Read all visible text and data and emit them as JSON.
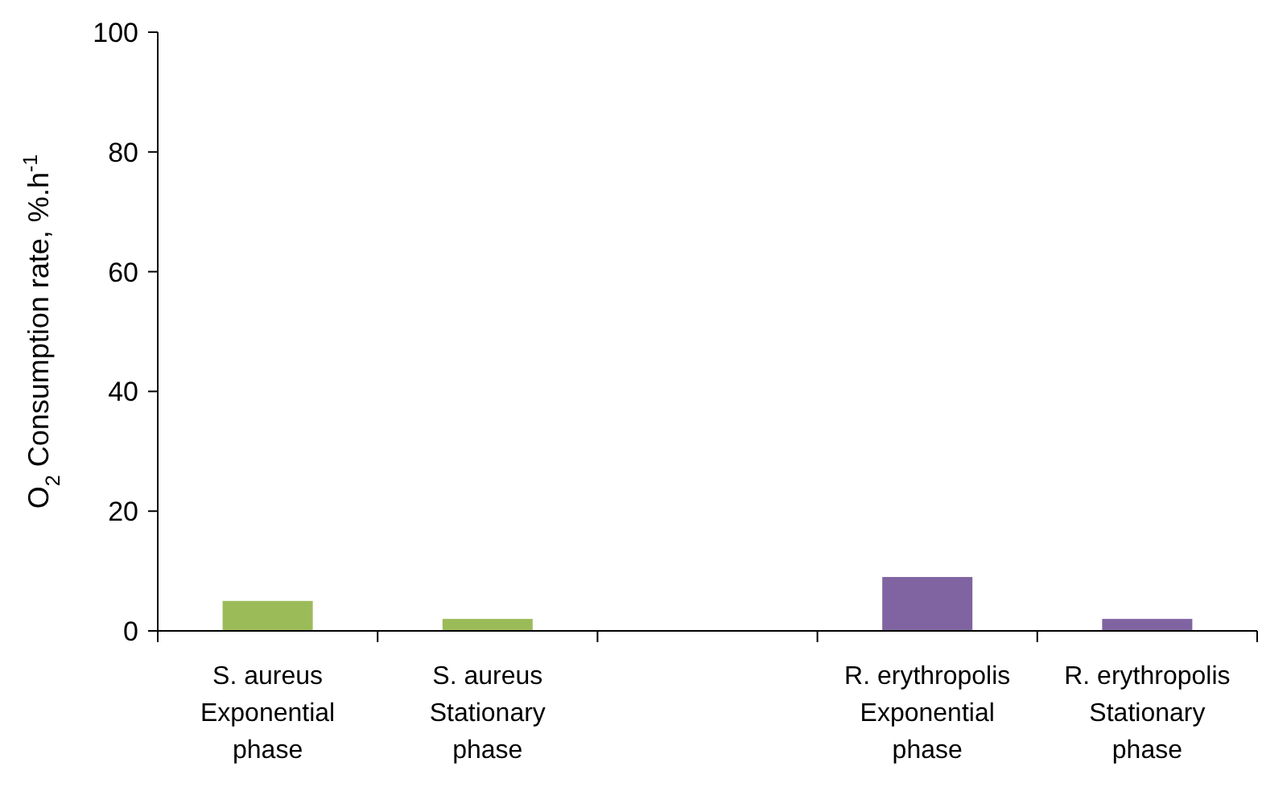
{
  "chart_data": {
    "type": "bar",
    "ylabel": "O$_{2}$ Consumption rate, %.h$^{-1}$",
    "categories": [
      "S. aureus Exponential phase",
      "S. aureus Stationary phase",
      null,
      "R. erythropolis Exponential phase",
      "R. erythropolis Stationary phase"
    ],
    "values": [
      5,
      2,
      null,
      9,
      2
    ],
    "colors": [
      "#9bbb59",
      "#9bbb59",
      null,
      "#8064a2",
      "#8064a2"
    ],
    "ylim": [
      0,
      100
    ],
    "yticks": [
      0,
      20,
      40,
      60,
      80,
      100
    ],
    "grid": false
  }
}
